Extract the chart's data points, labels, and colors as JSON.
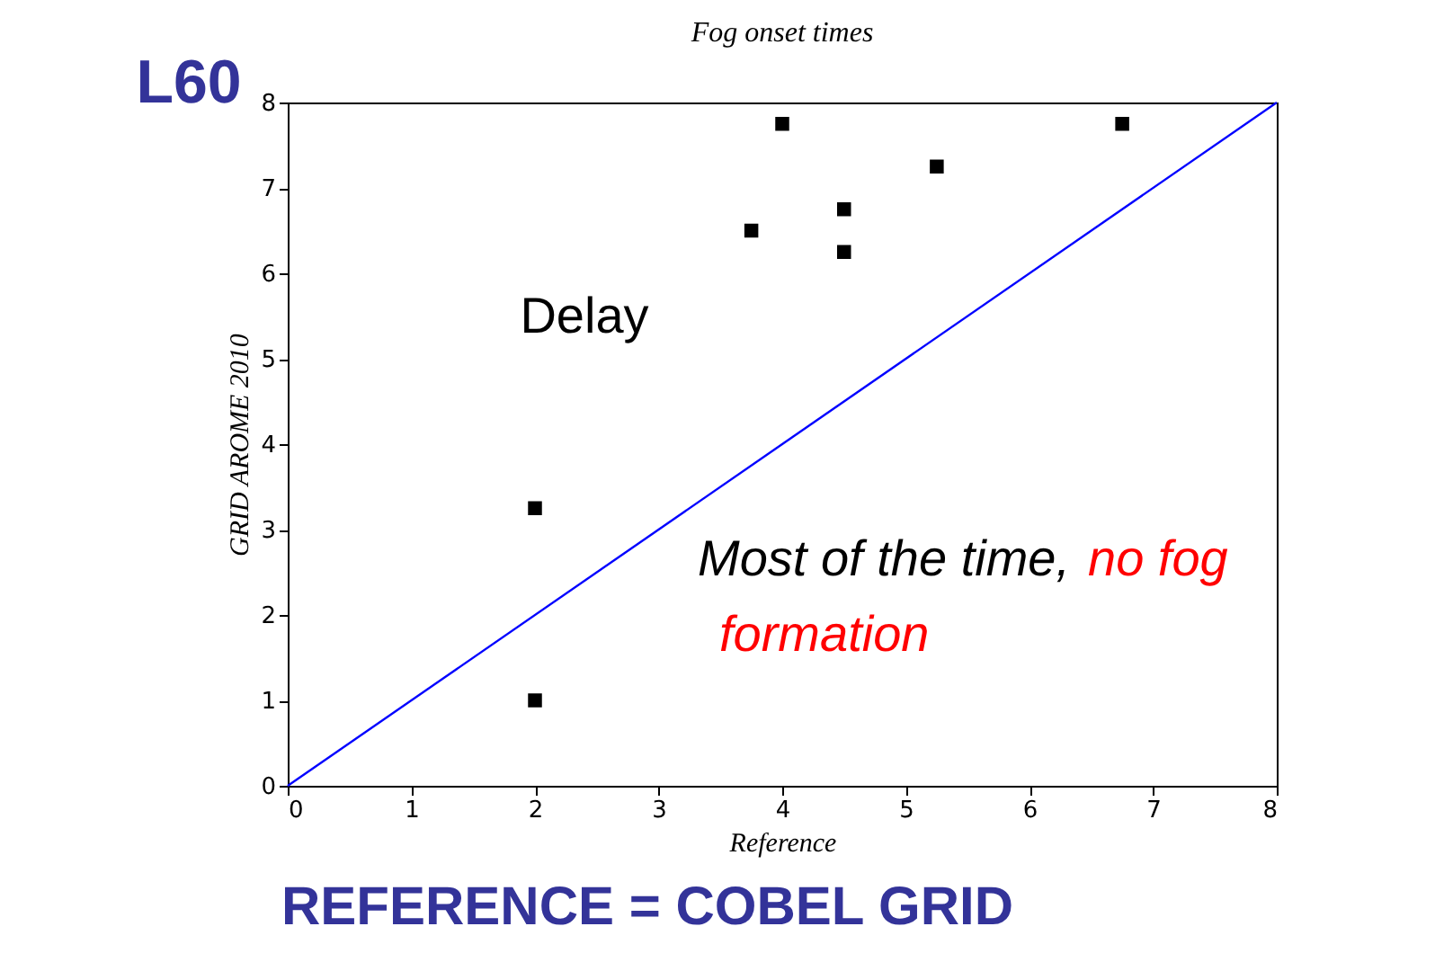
{
  "chart_data": {
    "type": "scatter",
    "title": "Fog onset times",
    "xlabel": "Reference",
    "ylabel": "GRID AROME 2010",
    "xlim": [
      0,
      8
    ],
    "ylim": [
      0,
      8
    ],
    "xticks": [
      0,
      1,
      2,
      3,
      4,
      5,
      6,
      7,
      8
    ],
    "yticks": [
      0,
      1,
      2,
      3,
      4,
      5,
      6,
      7,
      8
    ],
    "grid": false,
    "marker": "square",
    "series": [
      {
        "type": "line",
        "marker": "none",
        "line_style": "solid",
        "color": "#0000ff",
        "x": [
          0,
          8
        ],
        "values": [
          0,
          8
        ]
      },
      {
        "color": "#000000",
        "x": [
          2,
          2,
          3.75,
          4,
          4.5,
          4.5,
          5.25,
          6.75
        ],
        "values": [
          1,
          3.25,
          6.5,
          7.75,
          6.75,
          6.25,
          7.25,
          7.75
        ]
      }
    ],
    "annotations": [
      "L60",
      "Delay",
      "Most of the time,",
      "no fog",
      "formation",
      "REFERENCE = COBEL GRID"
    ]
  }
}
